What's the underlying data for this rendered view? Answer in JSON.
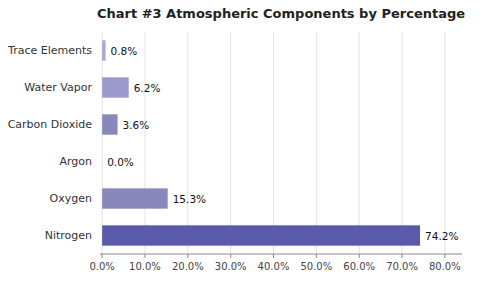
{
  "chart_data": {
    "type": "bar",
    "orientation": "horizontal",
    "title": "Chart #3 Atmospheric Components by Percentage",
    "categories": [
      "Nitrogen",
      "Oxygen",
      "Argon",
      "Carbon Dioxide",
      "Water Vapor",
      "Trace Elements"
    ],
    "values": [
      74.2,
      15.3,
      0.0,
      3.6,
      6.2,
      0.8
    ],
    "value_labels": [
      "74.2%",
      "15.3%",
      "0.0%",
      "3.6%",
      "6.2%",
      "0.8%"
    ],
    "data_labels": true,
    "colors": [
      "#5a5aaa",
      "#8888bb",
      "#8888aa",
      "#8888bb",
      "#9999cc",
      "#aaaacc"
    ],
    "xlim": [
      -0.5,
      84
    ],
    "xticks": [
      {
        "value": 0,
        "label": "0.0%"
      },
      {
        "value": 10,
        "label": "10.0%"
      },
      {
        "value": 20,
        "label": "20.0%"
      },
      {
        "value": 30,
        "label": "30.0%"
      },
      {
        "value": 40,
        "label": "40.0%"
      },
      {
        "value": 50,
        "label": "50.0%"
      },
      {
        "value": 60,
        "label": "60.0%"
      },
      {
        "value": 70,
        "label": "70.0%"
      },
      {
        "value": 80,
        "label": "80.0%"
      }
    ],
    "grid": true
  }
}
